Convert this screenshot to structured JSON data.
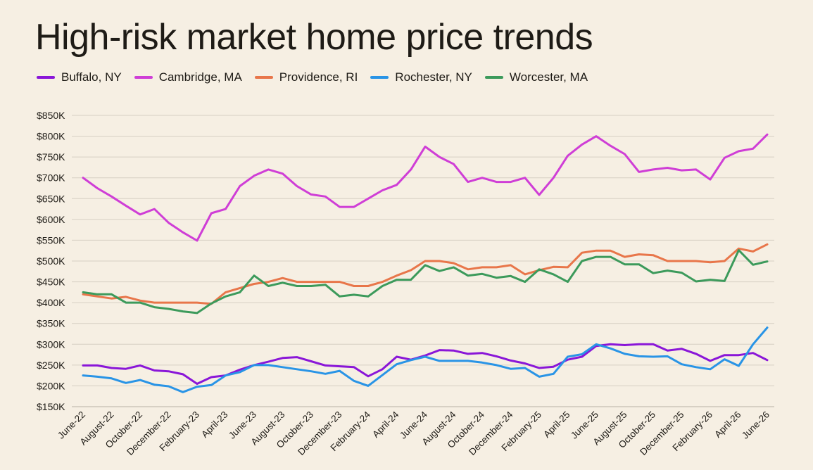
{
  "colors": {
    "background": "#f6efe3",
    "grid": "#d6cfc3",
    "text": "#1e1b16"
  },
  "chart_data": {
    "type": "line",
    "title": "High-risk market home price trends",
    "xlabel": "",
    "ylabel": "",
    "ylim": [
      150000,
      850000
    ],
    "yticks": [
      {
        "value": 150000,
        "label": "$150K"
      },
      {
        "value": 200000,
        "label": "$200K"
      },
      {
        "value": 250000,
        "label": "$250K"
      },
      {
        "value": 300000,
        "label": "$300K"
      },
      {
        "value": 350000,
        "label": "$350K"
      },
      {
        "value": 400000,
        "label": "$400K"
      },
      {
        "value": 450000,
        "label": "$450K"
      },
      {
        "value": 500000,
        "label": "$500K"
      },
      {
        "value": 550000,
        "label": "$550K"
      },
      {
        "value": 600000,
        "label": "$600K"
      },
      {
        "value": 650000,
        "label": "$650K"
      },
      {
        "value": 700000,
        "label": "$700K"
      },
      {
        "value": 750000,
        "label": "$750K"
      },
      {
        "value": 800000,
        "label": "$800K"
      },
      {
        "value": 850000,
        "label": "$850K"
      }
    ],
    "grid": true,
    "legend_position": "top-left",
    "x": [
      "2022-06",
      "2022-07",
      "2022-08",
      "2022-09",
      "2022-10",
      "2022-11",
      "2022-12",
      "2023-01",
      "2023-02",
      "2023-03",
      "2023-04",
      "2023-05",
      "2023-06",
      "2023-07",
      "2023-08",
      "2023-09",
      "2023-10",
      "2023-11",
      "2023-12",
      "2024-01",
      "2024-02",
      "2024-03",
      "2024-04",
      "2024-05",
      "2024-06",
      "2024-07",
      "2024-08",
      "2024-09",
      "2024-10",
      "2024-11",
      "2024-12",
      "2025-01",
      "2025-02",
      "2025-03",
      "2025-04",
      "2025-05",
      "2025-06",
      "2025-07",
      "2025-08",
      "2025-09",
      "2025-10",
      "2025-11",
      "2025-12",
      "2026-01",
      "2026-02",
      "2026-03",
      "2026-04",
      "2026-05",
      "2026-06"
    ],
    "xticks": [
      {
        "value": "2022-06",
        "label": "June-22"
      },
      {
        "value": "2022-08",
        "label": "August-22"
      },
      {
        "value": "2022-10",
        "label": "October-22"
      },
      {
        "value": "2022-12",
        "label": "December-22"
      },
      {
        "value": "2023-02",
        "label": "February-23"
      },
      {
        "value": "2023-04",
        "label": "April-23"
      },
      {
        "value": "2023-06",
        "label": "June-23"
      },
      {
        "value": "2023-08",
        "label": "August-23"
      },
      {
        "value": "2023-10",
        "label": "October-23"
      },
      {
        "value": "2023-12",
        "label": "December-23"
      },
      {
        "value": "2024-02",
        "label": "February-24"
      },
      {
        "value": "2024-04",
        "label": "April-24"
      },
      {
        "value": "2024-06",
        "label": "June-24"
      },
      {
        "value": "2024-08",
        "label": "August-24"
      },
      {
        "value": "2024-10",
        "label": "October-24"
      },
      {
        "value": "2024-12",
        "label": "December-24"
      },
      {
        "value": "2025-02",
        "label": "February-25"
      },
      {
        "value": "2025-04",
        "label": "April-25"
      },
      {
        "value": "2025-06",
        "label": "June-25"
      },
      {
        "value": "2025-08",
        "label": "August-25"
      },
      {
        "value": "2025-10",
        "label": "October-25"
      },
      {
        "value": "2025-12",
        "label": "December-25"
      },
      {
        "value": "2026-02",
        "label": "February-26"
      },
      {
        "value": "2026-04",
        "label": "April-26"
      },
      {
        "value": "2026-06",
        "label": "June-26"
      }
    ],
    "series": [
      {
        "name": "Buffalo, NY",
        "color": "#8a16d8",
        "values": [
          249000,
          249000,
          243000,
          241000,
          249000,
          237000,
          235000,
          228000,
          205000,
          221000,
          225000,
          239000,
          250000,
          258000,
          267000,
          269000,
          259000,
          249000,
          247000,
          245000,
          223000,
          240000,
          270000,
          263000,
          273000,
          286000,
          285000,
          277000,
          279000,
          271000,
          261000,
          254000,
          243000,
          246000,
          263000,
          270000,
          296000,
          300000,
          298000,
          300000,
          300000,
          285000,
          289000,
          277000,
          260000,
          274000,
          274000,
          279000,
          262000
        ]
      },
      {
        "name": "Cambridge, MA",
        "color": "#cf3ed6",
        "values": [
          700000,
          675000,
          655000,
          633000,
          612000,
          625000,
          592000,
          569000,
          549000,
          615000,
          625000,
          680000,
          705000,
          720000,
          710000,
          680000,
          660000,
          655000,
          630000,
          630000,
          650000,
          670000,
          683000,
          720000,
          775000,
          750000,
          733000,
          690000,
          700000,
          690000,
          690000,
          700000,
          659000,
          700000,
          753000,
          780000,
          800000,
          777000,
          757000,
          714000,
          720000,
          724000,
          718000,
          720000,
          696000,
          748000,
          764000,
          770000,
          804000
        ]
      },
      {
        "name": "Providence, RI",
        "color": "#e8764a",
        "values": [
          420000,
          415000,
          410000,
          414000,
          405000,
          400000,
          400000,
          400000,
          400000,
          397000,
          425000,
          435000,
          445000,
          450000,
          459000,
          450000,
          450000,
          450000,
          450000,
          440000,
          440000,
          450000,
          465000,
          478000,
          500000,
          500000,
          495000,
          480000,
          485000,
          485000,
          490000,
          468000,
          478000,
          486000,
          485000,
          520000,
          525000,
          525000,
          510000,
          516000,
          514000,
          500000,
          500000,
          500000,
          497000,
          500000,
          530000,
          523000,
          540000
        ]
      },
      {
        "name": "Rochester, NY",
        "color": "#2994e6",
        "values": [
          225000,
          222000,
          218000,
          207000,
          214000,
          203000,
          199000,
          185000,
          198000,
          202000,
          225000,
          233000,
          250000,
          250000,
          245000,
          240000,
          235000,
          229000,
          236000,
          212000,
          200000,
          226000,
          252000,
          262000,
          270000,
          260000,
          260000,
          260000,
          256000,
          250000,
          241000,
          243000,
          222000,
          229000,
          270000,
          276000,
          300000,
          290000,
          277000,
          271000,
          270000,
          271000,
          252000,
          245000,
          240000,
          264000,
          248000,
          300000,
          340000
        ]
      },
      {
        "name": "Worcester, MA",
        "color": "#3c9a5b",
        "values": [
          425000,
          420000,
          420000,
          400000,
          400000,
          389000,
          385000,
          379000,
          375000,
          398000,
          415000,
          425000,
          465000,
          440000,
          448000,
          440000,
          440000,
          443000,
          415000,
          419000,
          415000,
          440000,
          455000,
          455000,
          490000,
          476000,
          485000,
          465000,
          469000,
          460000,
          464000,
          450000,
          480000,
          468000,
          450000,
          500000,
          510000,
          510000,
          492000,
          492000,
          471000,
          477000,
          472000,
          451000,
          455000,
          452000,
          526000,
          491000,
          499000
        ]
      }
    ]
  }
}
